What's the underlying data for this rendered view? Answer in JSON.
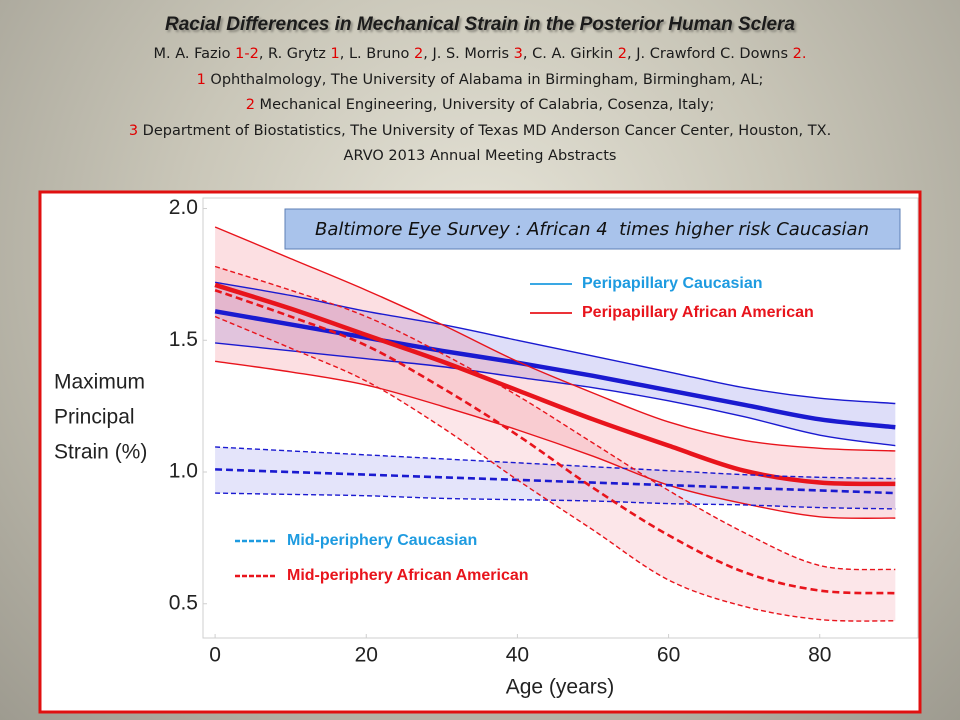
{
  "header": {
    "title": "Racial Differences in Mechanical Strain in the Posterior Human Sclera",
    "authors": [
      [
        "M. A. Fazio ",
        "1-2"
      ],
      [
        ", R. Grytz ",
        "1"
      ],
      [
        ", L. Bruno ",
        "2"
      ],
      [
        ", J. S. Morris ",
        "3"
      ],
      [
        ", C. A. Girkin ",
        "2"
      ],
      [
        ", J. Crawford C. Downs ",
        "2."
      ]
    ],
    "affiliations": [
      {
        "num": "1",
        "text": " Ophthalmology, The University of Alabama in Birmingham, Birmingham, AL;"
      },
      {
        "num": "2",
        "text": " Mechanical Engineering, University of Calabria, Cosenza, Italy;"
      },
      {
        "num": "3",
        "text": " Department of Biostatistics, The University of Texas MD Anderson Cancer Center, Houston, TX."
      }
    ],
    "conference": "ARVO 2013 Annual Meeting Abstracts"
  },
  "chart_data": {
    "type": "line",
    "annotation": "Baltimore Eye Survey : African 4  times higher risk Caucasian",
    "xlabel": "Age (years)",
    "ylabel": [
      "Maximum",
      "Principal",
      "Strain (%)"
    ],
    "x": [
      0,
      10,
      20,
      30,
      40,
      50,
      60,
      70,
      80,
      90
    ],
    "xlim": [
      -1.6,
      93
    ],
    "xticks": [
      0,
      20,
      40,
      60,
      80
    ],
    "ylim": [
      0.37,
      2.04
    ],
    "yticks": [
      0.5,
      {
        "value": 1,
        "label": "1.0"
      },
      1.5,
      {
        "value": 2,
        "label": "2.0"
      }
    ],
    "grid": false,
    "series": [
      {
        "name": "Peripapillary Caucasian",
        "color": "#1a1ad0",
        "legend_color": "#1e9be0",
        "band_color": "#5a5ae0",
        "dashed": false,
        "values": [
          1.61,
          1.56,
          1.51,
          1.46,
          1.415,
          1.365,
          1.31,
          1.255,
          1.2,
          1.17
        ],
        "upper": [
          1.72,
          1.67,
          1.61,
          1.56,
          1.5,
          1.44,
          1.38,
          1.32,
          1.28,
          1.26
        ],
        "lower": [
          1.49,
          1.46,
          1.43,
          1.4,
          1.36,
          1.32,
          1.27,
          1.21,
          1.14,
          1.1
        ]
      },
      {
        "name": "Peripapillary African American",
        "color": "#e8141c",
        "legend_color": "#e8141c",
        "band_color": "#f06070",
        "dashed": false,
        "values": [
          1.71,
          1.62,
          1.52,
          1.42,
          1.31,
          1.2,
          1.1,
          1.005,
          0.96,
          0.955
        ],
        "upper": [
          1.93,
          1.81,
          1.69,
          1.56,
          1.42,
          1.3,
          1.19,
          1.12,
          1.09,
          1.08
        ],
        "lower": [
          1.42,
          1.38,
          1.33,
          1.25,
          1.16,
          1.06,
          0.95,
          0.88,
          0.83,
          0.825
        ]
      },
      {
        "name": "Mid-periphery Caucasian",
        "color": "#1a1ad0",
        "legend_color": "#1e9be0",
        "band_color": "#7a7ae8",
        "dashed": true,
        "values": [
          1.01,
          1.0,
          0.99,
          0.98,
          0.97,
          0.96,
          0.95,
          0.94,
          0.93,
          0.92
        ],
        "upper": [
          1.095,
          1.08,
          1.065,
          1.05,
          1.035,
          1.02,
          1.005,
          0.99,
          0.98,
          0.975
        ],
        "lower": [
          0.92,
          0.915,
          0.91,
          0.9,
          0.895,
          0.89,
          0.88,
          0.875,
          0.865,
          0.86
        ]
      },
      {
        "name": "Mid-periphery African American",
        "color": "#e8141c",
        "legend_color": "#e8141c",
        "band_color": "#f08090",
        "dashed": true,
        "values": [
          1.69,
          1.59,
          1.48,
          1.32,
          1.14,
          0.94,
          0.76,
          0.62,
          0.55,
          0.54
        ],
        "upper": [
          1.78,
          1.69,
          1.59,
          1.45,
          1.29,
          1.11,
          0.93,
          0.77,
          0.645,
          0.63
        ],
        "lower": [
          1.59,
          1.47,
          1.345,
          1.17,
          0.97,
          0.78,
          0.59,
          0.49,
          0.44,
          0.435
        ]
      }
    ]
  }
}
